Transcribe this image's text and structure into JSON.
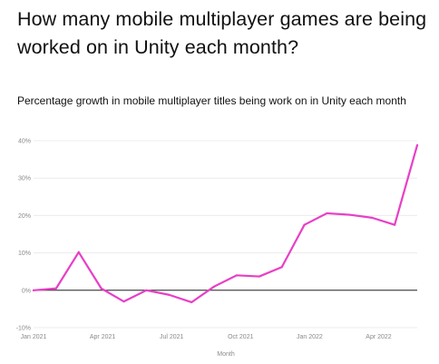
{
  "headline": "How many mobile multiplayer games are being worked on in Unity each month?",
  "chart_data": {
    "type": "line",
    "title": "Percentage growth in mobile multiplayer titles being work on in Unity each month",
    "xlabel": "Month",
    "ylabel": "",
    "x_tick_labels": [
      "Jan 2021",
      "Apr 2021",
      "Jul 2021",
      "Oct 2021",
      "Jan 2022",
      "Apr 2022"
    ],
    "y_tick_labels": [
      "-10%",
      "0%",
      "10%",
      "20%",
      "30%",
      "40%"
    ],
    "ylim": [
      -10,
      40
    ],
    "grid": "horizontal",
    "zero_line": true,
    "line_color": "#e83fc6",
    "x": [
      "Jan 2021",
      "Feb 2021",
      "Mar 2021",
      "Apr 2021",
      "May 2021",
      "Jun 2021",
      "Jul 2021",
      "Aug 2021",
      "Sep 2021",
      "Oct 2021",
      "Nov 2021",
      "Dec 2021",
      "Jan 2022",
      "Feb 2022",
      "Mar 2022",
      "Apr 2022",
      "May 2022",
      "Jun 2022"
    ],
    "values": [
      0,
      0.5,
      10.2,
      0.5,
      -3,
      0,
      -1.2,
      -3.2,
      1,
      4,
      3.7,
      6.2,
      17.5,
      20.6,
      20.2,
      19.4,
      17.5,
      38.8
    ]
  }
}
